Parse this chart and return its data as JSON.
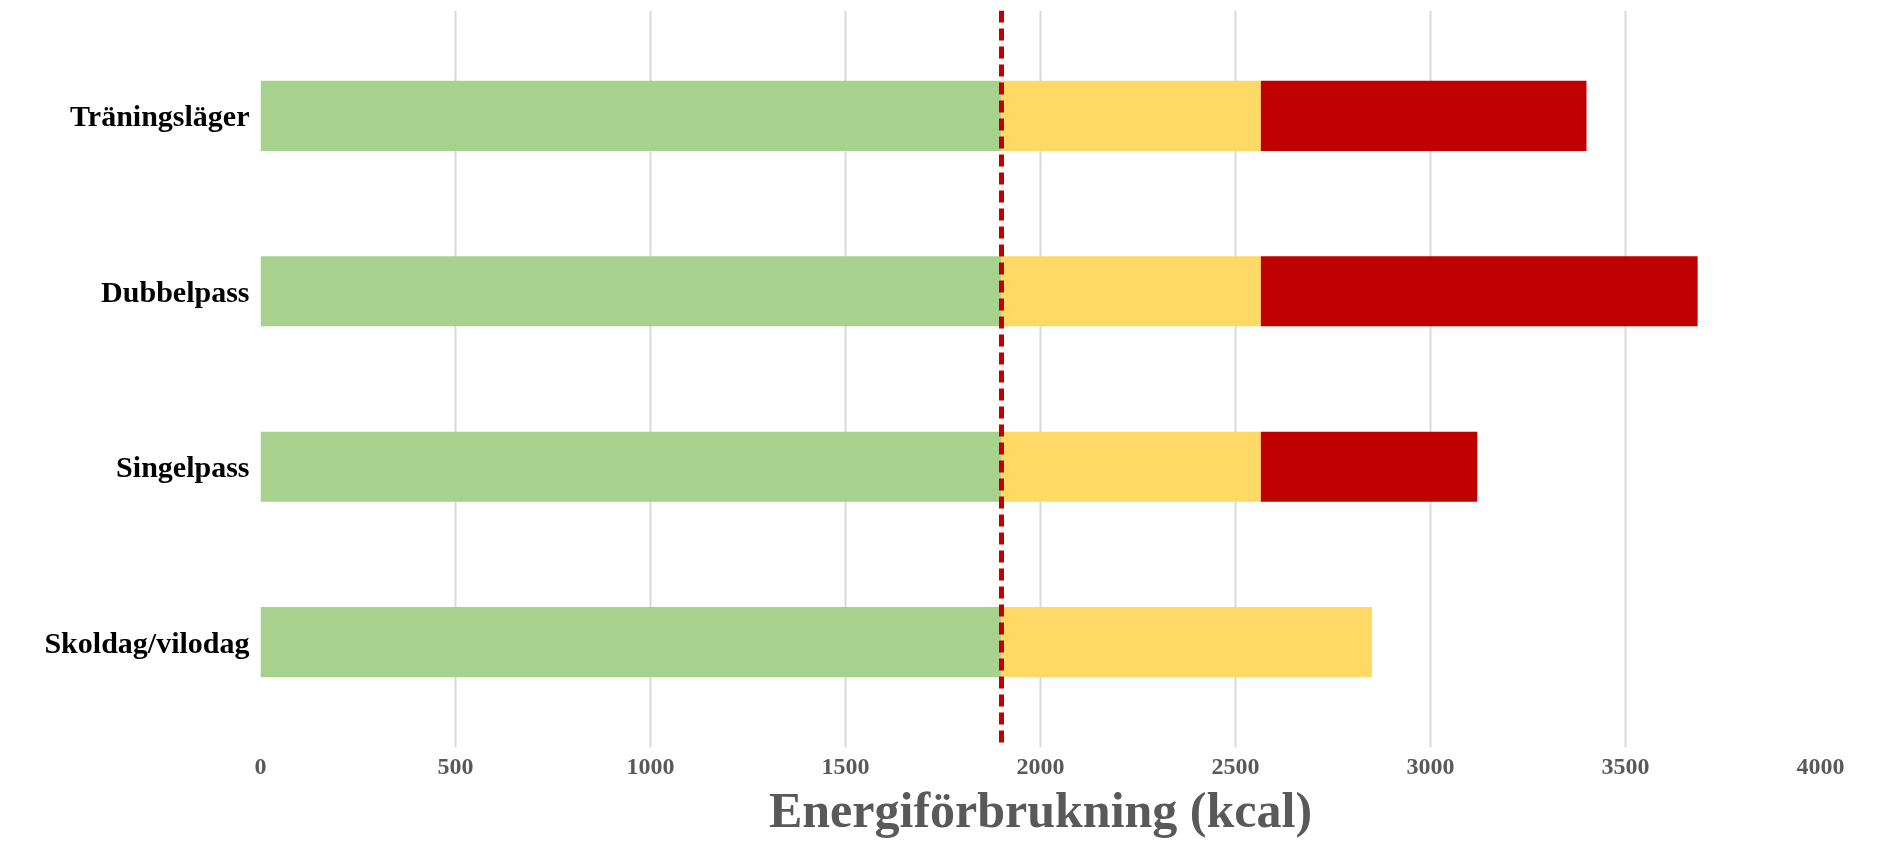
{
  "chart_data": {
    "type": "bar",
    "orientation": "horizontal",
    "stacked": true,
    "categories": [
      "Träningsläger",
      "Dubbelpass",
      "Singelpass",
      "Skoldag/vilodag"
    ],
    "series": [
      {
        "color": "#a9d18e",
        "values": [
          1900,
          1900,
          1900,
          1900
        ]
      },
      {
        "color": "#ffd966",
        "values": [
          665,
          665,
          665,
          950
        ]
      },
      {
        "color": "#c00000",
        "values": [
          835,
          1120,
          555,
          null
        ]
      }
    ],
    "xlabel": "Energiförbrukning (kcal)",
    "xlim": [
      0,
      4000
    ],
    "xticks": [
      0,
      500,
      1000,
      1500,
      2000,
      2500,
      3000,
      3500,
      4000
    ],
    "grid": "x",
    "ref_lines": [
      {
        "axis": "x",
        "value": 1900,
        "label": null,
        "color": "#c00000",
        "line_style": "dashed"
      }
    ]
  }
}
